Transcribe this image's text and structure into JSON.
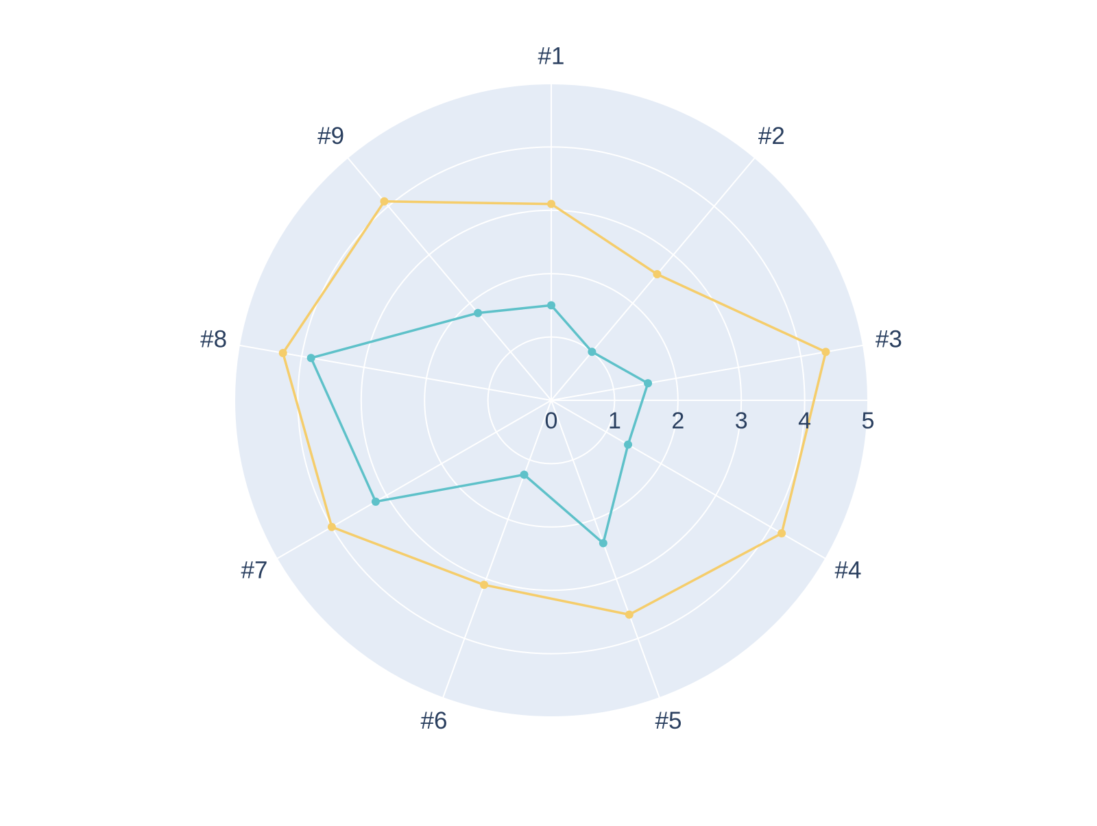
{
  "chart_data": {
    "type": "radar",
    "categories": [
      "#1",
      "#2",
      "#3",
      "#4",
      "#5",
      "#6",
      "#7",
      "#8",
      "#9"
    ],
    "series": [
      {
        "values": [
          3.1,
          2.6,
          4.4,
          4.2,
          3.6,
          3.1,
          4.0,
          4.3,
          4.1
        ],
        "color": "#f5cd6b"
      },
      {
        "values": [
          1.5,
          1.0,
          1.55,
          1.4,
          2.4,
          1.25,
          3.2,
          3.85,
          1.8
        ],
        "color": "#5ec1c9"
      }
    ],
    "radial_axis": {
      "range": [
        0,
        5
      ],
      "ticks": [
        "0",
        "1",
        "2",
        "3",
        "4",
        "5"
      ]
    },
    "background_color": "#e5ecf6",
    "grid_color": "#ffffff",
    "grid": true,
    "legend": "none"
  }
}
